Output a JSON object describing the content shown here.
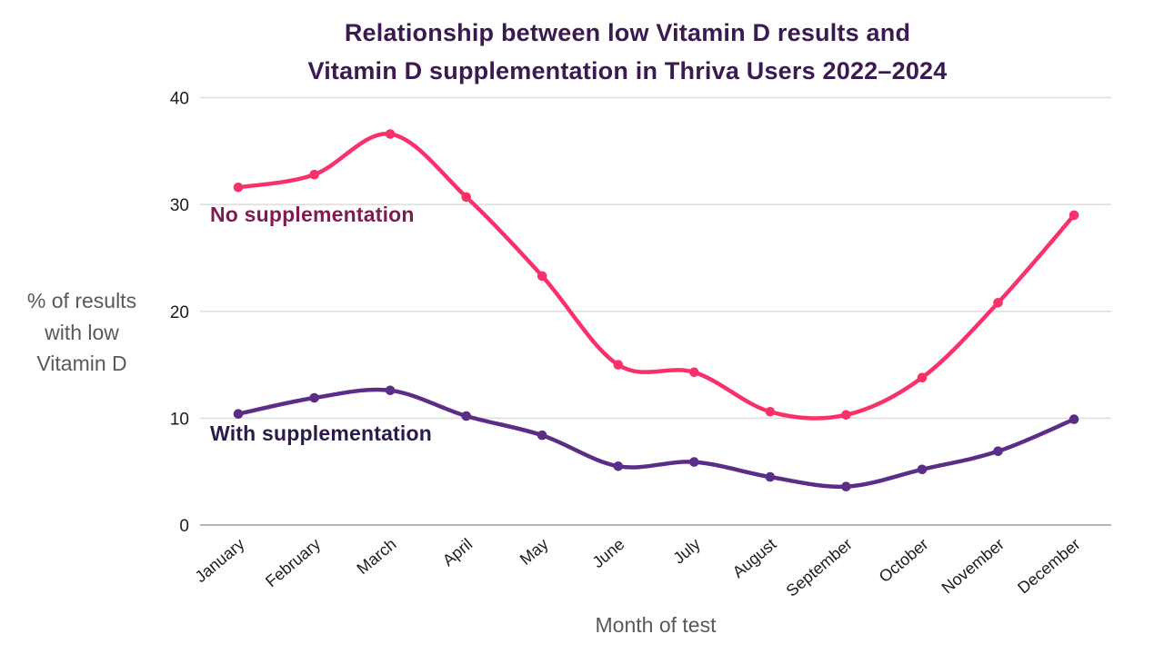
{
  "page": {
    "background": "#ffffff"
  },
  "chart_data": {
    "type": "line",
    "title": "Relationship between low Vitamin D results and Vitamin D supplementation in Thriva Users 2022–2024",
    "title_lines": [
      "Relationship between low Vitamin D results and",
      "Vitamin D supplementation in Thriva Users 2022–2024"
    ],
    "title_color": "#3a1a4f",
    "xlabel": "Month of test",
    "ylabel": "% of results with low Vitamin D",
    "ylabel_lines": [
      "% of results",
      "with low",
      "Vitamin D"
    ],
    "axis_label_color": "#595959",
    "tick_label_color": "#1c1c1c",
    "grid": "horizontal",
    "gridline_color": "#dcdcdc",
    "zeroline_color": "#b5b5b5",
    "ylim": [
      0,
      40
    ],
    "y_ticks": [
      0,
      10,
      20,
      30,
      40
    ],
    "categories": [
      "January",
      "February",
      "March",
      "April",
      "May",
      "June",
      "July",
      "August",
      "September",
      "October",
      "November",
      "December"
    ],
    "legend_position": "inline-annotations",
    "series": [
      {
        "name": "No supplementation",
        "color": "#f8316b",
        "label_color": "#7f1d52",
        "values": [
          31.6,
          32.8,
          36.6,
          30.7,
          23.3,
          15.0,
          14.3,
          10.6,
          10.3,
          13.8,
          20.8,
          29.0
        ]
      },
      {
        "name": "With supplementation",
        "color": "#5c2d86",
        "label_color": "#2c1a4d",
        "values": [
          10.4,
          11.9,
          12.6,
          10.2,
          8.4,
          5.5,
          5.9,
          4.5,
          3.6,
          5.2,
          6.9,
          9.9
        ]
      }
    ]
  }
}
